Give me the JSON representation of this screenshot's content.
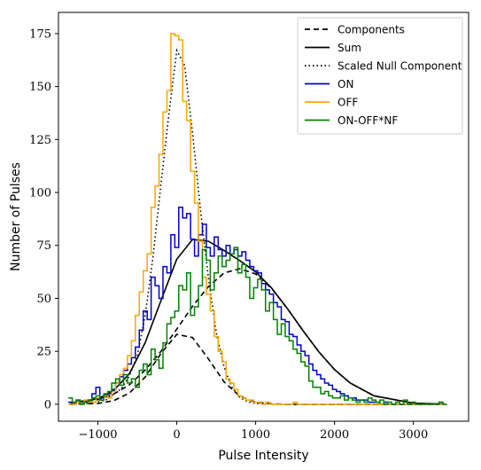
{
  "chart_data": {
    "type": "line",
    "xlabel": "Pulse Intensity",
    "ylabel": "Number of Pulses",
    "xlim": [
      -1500,
      3700
    ],
    "ylim": [
      -8,
      185
    ],
    "xticks": [
      -1000,
      0,
      1000,
      2000,
      3000
    ],
    "xtick_labels": [
      "−1000",
      "0",
      "1000",
      "2000",
      "3000"
    ],
    "yticks": [
      0,
      25,
      50,
      75,
      100,
      125,
      150,
      175
    ],
    "ytick_labels": [
      "0",
      "25",
      "50",
      "75",
      "100",
      "125",
      "150",
      "175"
    ],
    "legend_position": "top-right",
    "series": [
      {
        "name": "Components",
        "style": "dashed",
        "color": "#000000",
        "x": [
          -1350,
          -1000,
          -800,
          -600,
          -400,
          -200,
          0,
          200,
          400,
          600,
          800,
          1000,
          1200,
          1400,
          1600,
          2000,
          2500,
          3000,
          3400
        ],
        "y": [
          0,
          0.4,
          1.7,
          5.3,
          12.9,
          24.0,
          33.0,
          31.5,
          21.5,
          10.6,
          3.8,
          1.0,
          0.2,
          0,
          0,
          0,
          0,
          0,
          0
        ]
      },
      {
        "name": "",
        "style": "dashed",
        "color": "#000000",
        "x": [
          -1350,
          -1000,
          -800,
          -600,
          -400,
          -200,
          0,
          200,
          400,
          600,
          800,
          1000,
          1200,
          1400,
          1600,
          1800,
          2000,
          2200,
          2500,
          3000,
          3400
        ],
        "y": [
          0.6,
          2.2,
          4.8,
          9.2,
          16.2,
          25.0,
          35.5,
          46.3,
          55.5,
          62.0,
          64.0,
          61.5,
          54.8,
          45.3,
          34.8,
          24.8,
          16.4,
          10.0,
          4.0,
          0.5,
          0.1
        ]
      },
      {
        "name": "Sum",
        "style": "solid",
        "color": "#000000",
        "x": [
          -1350,
          -1000,
          -800,
          -600,
          -400,
          -200,
          0,
          200,
          400,
          600,
          800,
          1000,
          1200,
          1400,
          1600,
          1800,
          2000,
          2200,
          2500,
          3000,
          3400
        ],
        "y": [
          0.6,
          2.6,
          6.5,
          14.5,
          29.1,
          49.0,
          68.5,
          77.8,
          77.0,
          72.6,
          67.8,
          62.5,
          55.0,
          45.3,
          34.8,
          24.8,
          16.4,
          10.0,
          4.0,
          0.5,
          0.1
        ]
      },
      {
        "name": "Scaled Null Component",
        "style": "dotted",
        "color": "#000000",
        "x": [
          -1350,
          -1100,
          -900,
          -700,
          -600,
          -500,
          -400,
          -300,
          -200,
          -100,
          0,
          100,
          200,
          300,
          400,
          500,
          600,
          700,
          800,
          900,
          1000,
          1200,
          1400,
          1800,
          2400,
          3400
        ],
        "y": [
          0,
          0.5,
          2.0,
          7.5,
          13.5,
          23.0,
          42.0,
          70.0,
          104.0,
          137.0,
          167.0,
          160.0,
          128.0,
          92.0,
          60.0,
          34.0,
          17.5,
          8.0,
          3.2,
          1.2,
          0.4,
          0,
          0,
          0,
          0,
          0
        ]
      },
      {
        "name": "ON",
        "style": "steps",
        "color": "#0000cc",
        "x": [
          -1350,
          -1300,
          -1250,
          -1200,
          -1150,
          -1100,
          -1050,
          -1000,
          -950,
          -900,
          -850,
          -800,
          -750,
          -700,
          -650,
          -600,
          -550,
          -500,
          -450,
          -400,
          -350,
          -300,
          -250,
          -200,
          -150,
          -100,
          -50,
          0,
          50,
          100,
          150,
          200,
          250,
          300,
          350,
          400,
          450,
          500,
          550,
          600,
          650,
          700,
          750,
          800,
          850,
          900,
          950,
          1000,
          1050,
          1100,
          1150,
          1200,
          1250,
          1300,
          1350,
          1400,
          1450,
          1500,
          1550,
          1600,
          1650,
          1700,
          1750,
          1800,
          1850,
          1900,
          1950,
          2000,
          2050,
          2100,
          2150,
          2200,
          2250,
          2300,
          2350,
          2400,
          2450,
          2500,
          2550,
          2600,
          2650,
          2700,
          2750,
          2800,
          2850,
          2900,
          2950,
          3000,
          3050,
          3100,
          3150,
          3200,
          3250,
          3300,
          3350,
          3400
        ],
        "y": [
          1,
          0,
          2,
          0,
          1,
          2,
          5,
          8,
          3,
          4,
          5,
          7,
          10,
          13,
          16,
          19,
          22,
          27,
          35,
          44,
          40,
          60,
          56,
          50,
          65,
          62,
          80,
          74,
          93,
          88,
          90,
          78,
          70,
          80,
          85,
          74,
          70,
          79,
          73,
          70,
          75,
          71,
          73,
          70,
          72,
          68,
          65,
          63,
          62,
          57,
          54,
          52,
          48,
          46,
          40,
          39,
          33,
          32,
          28,
          25,
          23,
          19,
          16,
          14,
          12,
          10,
          9,
          7,
          6,
          5,
          4,
          3,
          3,
          2,
          2,
          2,
          1,
          1,
          1,
          0,
          1,
          0,
          0,
          0,
          0,
          0,
          0,
          0,
          0,
          0,
          0,
          0,
          0,
          0,
          0,
          0
        ]
      },
      {
        "name": "OFF",
        "style": "steps",
        "color": "#ffa500",
        "x": [
          -1350,
          -1300,
          -1250,
          -1200,
          -1150,
          -1100,
          -1050,
          -1000,
          -950,
          -900,
          -850,
          -800,
          -750,
          -700,
          -650,
          -600,
          -550,
          -500,
          -450,
          -400,
          -350,
          -300,
          -250,
          -200,
          -150,
          -100,
          -50,
          0,
          50,
          100,
          150,
          200,
          250,
          300,
          350,
          400,
          450,
          500,
          550,
          600,
          650,
          700,
          750,
          800,
          850,
          900,
          950,
          1000,
          1050,
          1100,
          1150,
          1200,
          1250,
          1300,
          1350,
          1400,
          1450,
          1500,
          1550,
          1600,
          1650,
          1700,
          1750,
          1800,
          1850,
          1900,
          1950,
          2000,
          2050,
          2100,
          2150,
          2200,
          2250,
          2300,
          2350,
          2400,
          2450,
          2500,
          2550,
          2600,
          2650,
          2700,
          2750,
          2800,
          2850,
          2900,
          2950,
          3000,
          3050,
          3100,
          3150,
          3200,
          3250,
          3300,
          3350,
          3400
        ],
        "y": [
          0,
          0,
          1,
          0,
          2,
          1,
          1,
          3,
          2,
          4,
          3,
          6,
          10,
          14,
          17,
          23,
          30,
          42,
          53,
          63,
          71,
          93,
          103,
          118,
          138,
          148,
          175,
          174,
          172,
          143,
          134,
          110,
          95,
          77,
          60,
          52,
          44,
          32,
          25,
          20,
          12,
          10,
          7,
          4,
          3,
          2,
          2,
          1,
          1,
          0,
          1,
          0,
          0,
          0,
          0,
          0,
          0,
          1,
          0,
          0,
          0,
          0,
          0,
          0,
          0,
          0,
          0,
          0,
          0,
          0,
          0,
          0,
          0,
          0,
          0,
          0,
          0,
          0,
          0,
          0,
          0,
          0,
          0,
          0,
          0,
          0,
          0,
          0,
          0,
          0,
          0,
          0,
          0,
          0,
          0,
          0
        ]
      },
      {
        "name": "ON-OFF*NF",
        "style": "steps",
        "color": "#008000",
        "x": [
          -1350,
          -1300,
          -1250,
          -1200,
          -1150,
          -1100,
          -1050,
          -1000,
          -950,
          -900,
          -850,
          -800,
          -750,
          -700,
          -650,
          -600,
          -550,
          -500,
          -450,
          -400,
          -350,
          -300,
          -250,
          -200,
          -150,
          -100,
          -50,
          0,
          50,
          100,
          150,
          200,
          250,
          300,
          350,
          400,
          450,
          500,
          550,
          600,
          650,
          700,
          750,
          800,
          850,
          900,
          950,
          1000,
          1050,
          1100,
          1150,
          1200,
          1250,
          1300,
          1350,
          1400,
          1450,
          1500,
          1550,
          1600,
          1650,
          1700,
          1750,
          1800,
          1850,
          1900,
          1950,
          2000,
          2050,
          2100,
          2150,
          2200,
          2250,
          2300,
          2350,
          2400,
          2450,
          2500,
          2550,
          2600,
          2650,
          2700,
          2750,
          2800,
          2850,
          2900,
          2950,
          3000,
          3050,
          3100,
          3150,
          3200,
          3250,
          3300,
          3350,
          3400
        ],
        "y": [
          3,
          1,
          2,
          0,
          1,
          2,
          3,
          4,
          2,
          5,
          6,
          10,
          12,
          9,
          14,
          10,
          12,
          8,
          16,
          19,
          14,
          26,
          21,
          17,
          29,
          38,
          41,
          44,
          56,
          54,
          62,
          42,
          46,
          56,
          73,
          68,
          54,
          62,
          70,
          65,
          68,
          71,
          74,
          62,
          66,
          60,
          50,
          55,
          59,
          54,
          44,
          48,
          40,
          33,
          38,
          32,
          30,
          26,
          24,
          20,
          18,
          11,
          8,
          8,
          5,
          6,
          4,
          3,
          3,
          4,
          2,
          3,
          2,
          1,
          2,
          1,
          3,
          2,
          1,
          2,
          0,
          1,
          0,
          1,
          0,
          2,
          0,
          1,
          0,
          0,
          0,
          0,
          0,
          0,
          1,
          0
        ]
      }
    ]
  }
}
